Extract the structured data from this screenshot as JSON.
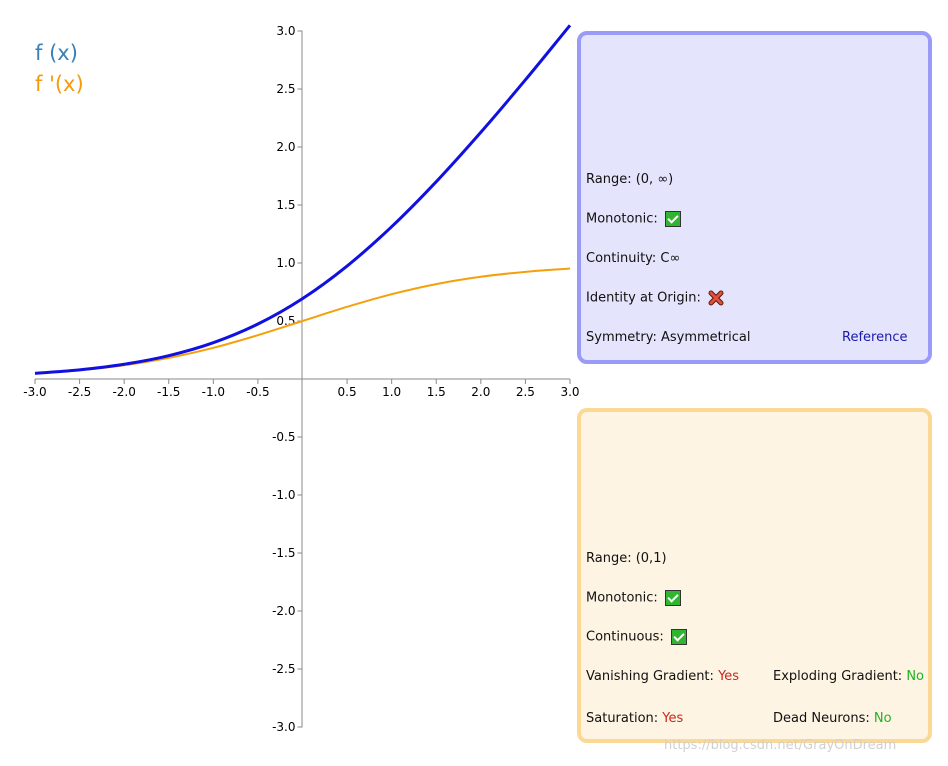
{
  "chart_data": {
    "type": "line",
    "title": "",
    "xlabel": "",
    "ylabel": "",
    "xlim": [
      -3.0,
      3.0
    ],
    "ylim": [
      -3.0,
      3.0
    ],
    "x_ticks": [
      "-3.0",
      "-2.5",
      "-2.0",
      "-1.5",
      "-1.0",
      "-0.5",
      "0.5",
      "1.0",
      "1.5",
      "2.0",
      "2.5",
      "3.0"
    ],
    "y_ticks": [
      "3.0",
      "2.5",
      "2.0",
      "1.5",
      "1.0",
      "0.5",
      "-0.5",
      "-1.0",
      "-1.5",
      "-2.0",
      "-2.5",
      "-3.0"
    ],
    "legend": [
      {
        "name": "f (x)",
        "color": "#3a7fb5"
      },
      {
        "name": "f '(x)",
        "color": "#f59a0a"
      }
    ],
    "series": [
      {
        "name": "f (x)",
        "line_color": "#1010e0",
        "x": [
          -3.0,
          -2.5,
          -2.0,
          -1.5,
          -1.0,
          -0.5,
          0.0,
          0.5,
          1.0,
          1.5,
          2.0,
          2.5,
          3.0
        ],
        "values": [
          0.049,
          0.079,
          0.127,
          0.201,
          0.313,
          0.474,
          0.693,
          0.974,
          1.313,
          1.701,
          2.127,
          2.579,
          3.049
        ]
      },
      {
        "name": "f '(x)",
        "line_color": "#f5a00a",
        "x": [
          -3.0,
          -2.5,
          -2.0,
          -1.5,
          -1.0,
          -0.5,
          0.0,
          0.5,
          1.0,
          1.5,
          2.0,
          2.5,
          3.0
        ],
        "values": [
          0.047,
          0.076,
          0.119,
          0.182,
          0.269,
          0.378,
          0.5,
          0.622,
          0.731,
          0.818,
          0.881,
          0.924,
          0.953
        ]
      }
    ]
  },
  "panel_fx": {
    "range_label": "Range: (0, ∞)",
    "monotonic_label": "Monotonic:",
    "continuity_label": "Continuity: C∞",
    "identity_label": "Identity at Origin:",
    "symmetry_label": "Symmetry: Asymmetrical",
    "reference_link": "Reference",
    "colors": {
      "border": "#9a9af8",
      "background": "#e4e4fc"
    }
  },
  "panel_dfx": {
    "range_label": "Range: (0,1)",
    "monotonic_label": "Monotonic:",
    "continuous_label": "Continuous:",
    "vanishing_label": "Vanishing Gradient:",
    "vanishing_value": "Yes",
    "exploding_label": "Exploding Gradient:",
    "exploding_value": "No",
    "saturation_label": "Saturation:",
    "saturation_value": "Yes",
    "dead_neurons_label": "Dead Neurons:",
    "dead_neurons_value": "No",
    "colors": {
      "border": "#fcd895",
      "background": "#fdf4e3"
    }
  },
  "watermark": "https://blog.csdn.net/GrayOnDream"
}
